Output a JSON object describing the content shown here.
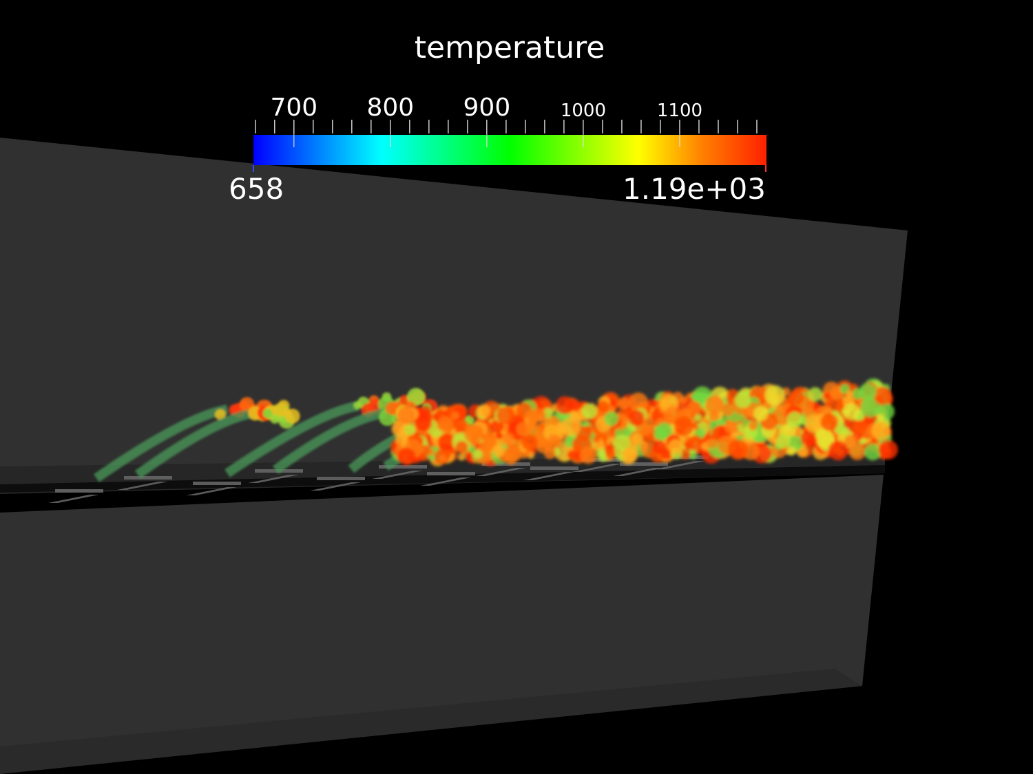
{
  "scalar_bar": {
    "title": "temperature",
    "range_min": 658,
    "range_max": 1190,
    "range_min_label": "658",
    "range_max_label": "1.19e+03",
    "ticks": [
      {
        "value": 700,
        "label": "700",
        "style": "major"
      },
      {
        "value": 800,
        "label": "800",
        "style": "major"
      },
      {
        "value": 900,
        "label": "900",
        "style": "major"
      },
      {
        "value": 1000,
        "label": "1000",
        "style": "minor"
      },
      {
        "value": 1100,
        "label": "1100",
        "style": "minor"
      }
    ],
    "minor_tick_step": 20,
    "colormap": [
      "#0000ff",
      "#0080ff",
      "#00ffff",
      "#00ff80",
      "#00ff00",
      "#80ff00",
      "#ffff00",
      "#ff8000",
      "#ff2000"
    ]
  },
  "scene": {
    "background_color": "#000000",
    "geometry_color": "#303030"
  }
}
